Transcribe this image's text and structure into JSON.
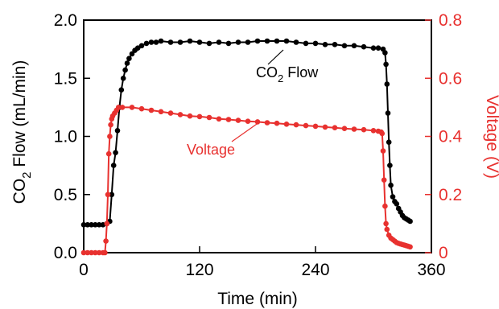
{
  "chart_data": {
    "type": "line",
    "xlabel": "Time (min)",
    "ylabel_left": {
      "base": "CO",
      "sub": "2",
      "rest": " Flow (mL/min)"
    },
    "ylabel_right": "Voltage (V)",
    "xlim": [
      0,
      360
    ],
    "ylim_left": [
      0,
      2.0
    ],
    "ylim_right": [
      0,
      0.8
    ],
    "xticks": [
      "0",
      "120",
      "240",
      "360"
    ],
    "yticks_left": [
      "0.0",
      "0.5",
      "1.0",
      "1.5",
      "2.0"
    ],
    "yticks_right": [
      "0",
      "0.2",
      "0.4",
      "0.6",
      "0.8"
    ],
    "grid": false,
    "colors": {
      "co2": "#000000",
      "voltage": "#e8312f"
    },
    "annotations": {
      "co2": {
        "base": "CO",
        "sub": "2",
        "rest": " Flow"
      },
      "voltage": "Voltage"
    },
    "series": [
      {
        "key": "co2",
        "axis": "left",
        "x": [
          0,
          4,
          8,
          12,
          16,
          20,
          24,
          27,
          29,
          31,
          33,
          35,
          37,
          39,
          41,
          43,
          45,
          47,
          50,
          53,
          56,
          60,
          65,
          70,
          75,
          80,
          90,
          100,
          110,
          120,
          130,
          140,
          150,
          160,
          170,
          180,
          190,
          200,
          210,
          220,
          230,
          240,
          250,
          260,
          270,
          280,
          290,
          300,
          305,
          310,
          312,
          313,
          314,
          315,
          316,
          317,
          318,
          320,
          322,
          324,
          326,
          328,
          330,
          332,
          334,
          336,
          338
        ],
        "y": [
          0.24,
          0.24,
          0.24,
          0.24,
          0.24,
          0.24,
          0.25,
          0.27,
          0.5,
          0.75,
          0.86,
          1.05,
          1.25,
          1.4,
          1.5,
          1.57,
          1.63,
          1.67,
          1.71,
          1.74,
          1.76,
          1.78,
          1.8,
          1.81,
          1.81,
          1.82,
          1.81,
          1.81,
          1.82,
          1.81,
          1.8,
          1.81,
          1.8,
          1.81,
          1.81,
          1.82,
          1.82,
          1.82,
          1.82,
          1.81,
          1.8,
          1.8,
          1.79,
          1.79,
          1.78,
          1.78,
          1.77,
          1.76,
          1.76,
          1.75,
          1.72,
          1.62,
          1.45,
          1.2,
          0.95,
          0.75,
          0.58,
          0.48,
          0.44,
          0.42,
          0.38,
          0.35,
          0.32,
          0.3,
          0.29,
          0.28,
          0.27
        ]
      },
      {
        "key": "voltage",
        "axis": "right",
        "x": [
          0,
          4,
          8,
          12,
          16,
          20,
          22,
          23,
          24,
          25,
          26,
          27,
          28,
          29,
          30,
          32,
          34,
          36,
          40,
          50,
          60,
          70,
          80,
          90,
          100,
          110,
          120,
          130,
          140,
          150,
          160,
          170,
          180,
          190,
          200,
          210,
          220,
          230,
          240,
          250,
          260,
          270,
          280,
          290,
          300,
          305,
          308,
          309,
          310,
          311,
          312,
          313,
          314,
          316,
          318,
          320,
          322,
          324,
          326,
          328,
          330,
          332,
          334,
          336,
          338
        ],
        "y": [
          0,
          0,
          0,
          0,
          0,
          0,
          0,
          0.04,
          0.1,
          0.2,
          0.34,
          0.4,
          0.44,
          0.46,
          0.47,
          0.48,
          0.49,
          0.5,
          0.5,
          0.5,
          0.495,
          0.49,
          0.485,
          0.48,
          0.475,
          0.47,
          0.468,
          0.465,
          0.46,
          0.458,
          0.455,
          0.452,
          0.45,
          0.447,
          0.445,
          0.442,
          0.44,
          0.437,
          0.435,
          0.432,
          0.43,
          0.427,
          0.425,
          0.423,
          0.42,
          0.418,
          0.415,
          0.41,
          0.35,
          0.25,
          0.16,
          0.1,
          0.08,
          0.06,
          0.05,
          0.045,
          0.04,
          0.035,
          0.032,
          0.03,
          0.028,
          0.026,
          0.024,
          0.022,
          0.02
        ]
      }
    ]
  }
}
